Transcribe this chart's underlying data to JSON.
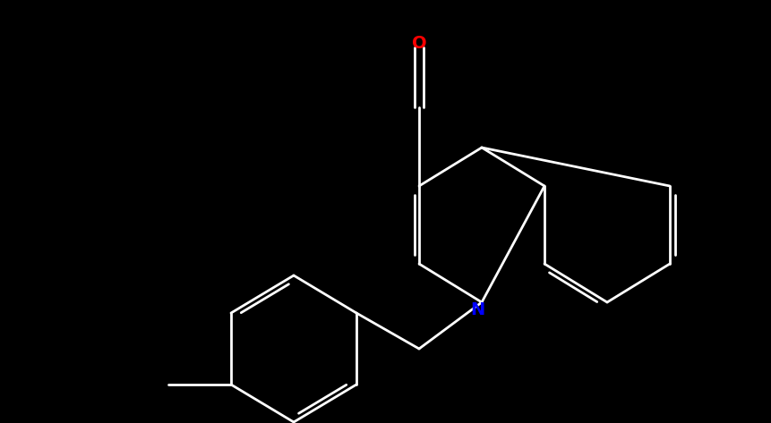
{
  "background_color": "#000000",
  "bond_color": "#ffffff",
  "N_color": "#0000ff",
  "O_color": "#ff0000",
  "figsize": [
    8.61,
    4.73
  ],
  "dpi": 100,
  "lw": 2.0,
  "font_size": 14
}
